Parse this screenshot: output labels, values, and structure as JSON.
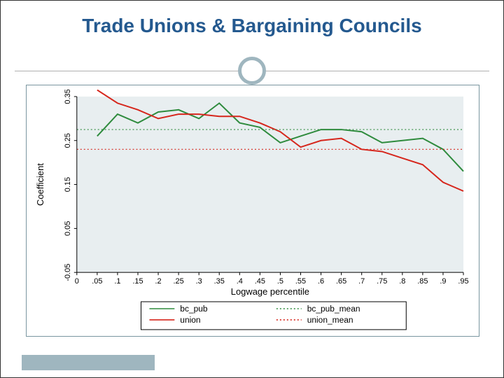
{
  "title": "Trade Unions & Bargaining Councils",
  "chart": {
    "type": "line",
    "background_color": "#ffffff",
    "plot_area_color": "#e8eef0",
    "axis_color": "#000000",
    "title_color": "#24598f",
    "title_fontsize": 28,
    "xlabel": "Logwage percentile",
    "ylabel": "Coefficient",
    "label_fontsize": 13,
    "tick_fontsize": 11,
    "xlim": [
      0,
      0.95
    ],
    "ylim": [
      -0.05,
      0.35
    ],
    "xticks": [
      0,
      0.05,
      0.1,
      0.15,
      0.2,
      0.25,
      0.3,
      0.35,
      0.4,
      0.45,
      0.5,
      0.55,
      0.6,
      0.65,
      0.7,
      0.75,
      0.8,
      0.85,
      0.9,
      0.95
    ],
    "xtick_labels": [
      "0",
      ".05",
      ".1",
      ".15",
      ".2",
      ".25",
      ".3",
      ".35",
      ".4",
      ".45",
      ".5",
      ".55",
      ".6",
      ".65",
      ".7",
      ".75",
      ".8",
      ".85",
      ".9",
      ".95"
    ],
    "yticks": [
      -0.05,
      0.05,
      0.15,
      0.25,
      0.35
    ],
    "ytick_labels": [
      "-0.05",
      "0.05",
      "0.15",
      "0.25",
      "0.35"
    ],
    "series": {
      "bc_pub": {
        "color": "#2e8b3d",
        "line_width": 2,
        "dash": "solid",
        "x": [
          0.05,
          0.1,
          0.15,
          0.2,
          0.25,
          0.3,
          0.35,
          0.4,
          0.45,
          0.5,
          0.55,
          0.6,
          0.65,
          0.7,
          0.75,
          0.8,
          0.85,
          0.9,
          0.95
        ],
        "y": [
          0.26,
          0.31,
          0.29,
          0.315,
          0.32,
          0.3,
          0.335,
          0.29,
          0.28,
          0.245,
          0.26,
          0.275,
          0.275,
          0.27,
          0.245,
          0.25,
          0.255,
          0.23,
          0.18
        ]
      },
      "union": {
        "color": "#d6261c",
        "line_width": 2,
        "dash": "solid",
        "x": [
          0.05,
          0.1,
          0.15,
          0.2,
          0.25,
          0.3,
          0.35,
          0.4,
          0.45,
          0.5,
          0.55,
          0.6,
          0.65,
          0.7,
          0.75,
          0.8,
          0.85,
          0.9,
          0.95
        ],
        "y": [
          0.365,
          0.335,
          0.32,
          0.3,
          0.31,
          0.31,
          0.305,
          0.305,
          0.29,
          0.27,
          0.235,
          0.25,
          0.255,
          0.23,
          0.225,
          0.21,
          0.195,
          0.155,
          0.135
        ]
      },
      "bc_pub_mean": {
        "color": "#2e8b3d",
        "line_width": 1.2,
        "dash": "dotted",
        "value": 0.275
      },
      "union_mean": {
        "color": "#d6261c",
        "line_width": 1.2,
        "dash": "dotted",
        "value": 0.23
      }
    },
    "legend": {
      "position": "bottom",
      "border_color": "#000000",
      "items": [
        {
          "key": "bc_pub",
          "label": "bc_pub",
          "style": "solid",
          "color": "#2e8b3d"
        },
        {
          "key": "bc_pub_mean",
          "label": "bc_pub_mean",
          "style": "dotted",
          "color": "#2e8b3d"
        },
        {
          "key": "union",
          "label": "union",
          "style": "solid",
          "color": "#d6261c"
        },
        {
          "key": "union_mean",
          "label": "union_mean",
          "style": "dotted",
          "color": "#d6261c"
        }
      ]
    }
  },
  "decor": {
    "ring_color": "#9fb6bf",
    "footer_bar_color": "#9fb6bf",
    "chart_border_color": "#7a96a0"
  }
}
